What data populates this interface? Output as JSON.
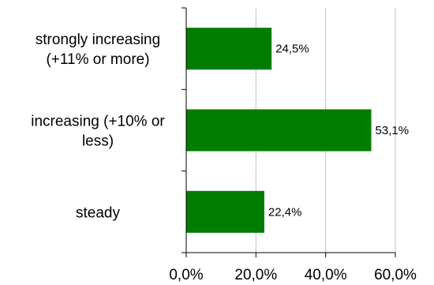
{
  "chart_data": {
    "type": "bar",
    "orientation": "horizontal",
    "title": "",
    "xlabel": "",
    "ylabel": "",
    "categories": [
      [
        "strongly increasing",
        "(+11% or more)"
      ],
      [
        "increasing (+10% or",
        "less)"
      ],
      [
        "steady"
      ]
    ],
    "values": [
      24.5,
      53.1,
      22.4
    ],
    "data_labels": [
      "24,5%",
      "53,1%",
      "22,4%"
    ],
    "xlim": [
      0,
      60
    ],
    "xticks": [
      0,
      20,
      40,
      60
    ],
    "xtick_labels": [
      "0,0%",
      "20,0%",
      "40,0%",
      "60,0%"
    ],
    "grid": "vertical",
    "legend": "none",
    "colors": {
      "bar": "#007D00",
      "grid": "#C0C0C0",
      "axis": "#000000"
    }
  }
}
